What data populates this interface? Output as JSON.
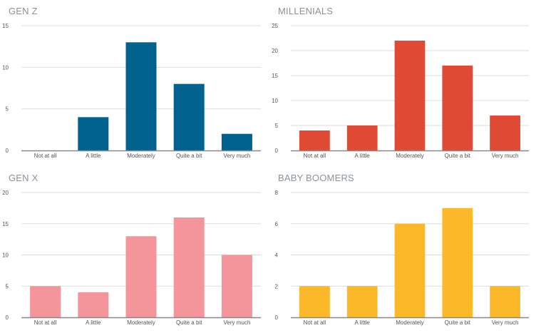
{
  "categories": [
    "Not at all",
    "A little",
    "Moderately",
    "Quite a bit",
    "Very much"
  ],
  "chart_data": [
    {
      "type": "bar",
      "title": "GEN Z",
      "color": "#01628f",
      "categories": [
        "Not at all",
        "A little",
        "Moderately",
        "Quite a bit",
        "Very much"
      ],
      "values": [
        0,
        4,
        13,
        8,
        2
      ],
      "ylim": [
        0,
        15
      ],
      "yticks": [
        0,
        5,
        10,
        15
      ],
      "grid": true
    },
    {
      "type": "bar",
      "title": "MILLENIALS",
      "color": "#e04a34",
      "categories": [
        "Not at all",
        "A little",
        "Moderately",
        "Quite a bit",
        "Very much"
      ],
      "values": [
        4,
        5,
        22,
        17,
        7
      ],
      "ylim": [
        0,
        25
      ],
      "yticks": [
        0,
        5,
        10,
        15,
        20,
        25
      ],
      "grid": true
    },
    {
      "type": "bar",
      "title": "GEN X",
      "color": "#f4959c",
      "categories": [
        "Not at all",
        "A little",
        "Moderately",
        "Quite a bit",
        "Very much"
      ],
      "values": [
        5,
        4,
        13,
        16,
        10
      ],
      "ylim": [
        0,
        20
      ],
      "yticks": [
        0,
        5,
        10,
        15,
        20
      ],
      "grid": true
    },
    {
      "type": "bar",
      "title": "BABY BOOMERS",
      "color": "#fbb829",
      "categories": [
        "Not at all",
        "A little",
        "Moderately",
        "Quite a bit",
        "Very much"
      ],
      "values": [
        2,
        2,
        6,
        7,
        2
      ],
      "ylim": [
        0,
        8
      ],
      "yticks": [
        0,
        2,
        4,
        6,
        8
      ],
      "grid": true
    }
  ]
}
